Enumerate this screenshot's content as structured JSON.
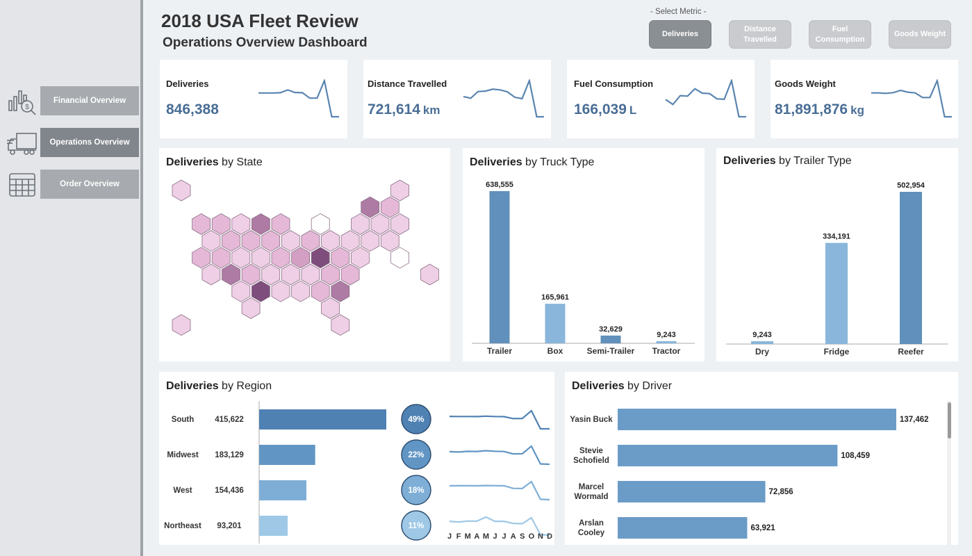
{
  "sidebar": {
    "items": [
      {
        "label": "Financial Overview",
        "icon": "financial-chart-icon",
        "active": false
      },
      {
        "label": "Operations Overview",
        "icon": "truck-icon",
        "active": true
      },
      {
        "label": "Order Overview",
        "icon": "calendar-grid-icon",
        "active": false
      }
    ]
  },
  "header": {
    "title": "2018 USA Fleet Review",
    "subtitle": "Operations Overview Dashboard",
    "metric_label": "- Select Metric -",
    "metrics": [
      {
        "label": "Deliveries",
        "active": true
      },
      {
        "label": "Distance Travelled",
        "active": false
      },
      {
        "label": "Fuel Consumption",
        "active": false
      },
      {
        "label": "Goods Weight",
        "active": false
      }
    ]
  },
  "kpis": [
    {
      "label": "Deliveries",
      "value": "846,388",
      "unit": "",
      "trend": [
        10.2,
        10.2,
        10.2,
        10.3,
        11.5,
        10.4,
        10.3,
        8.0,
        8.0,
        15.5,
        0.0,
        0.0
      ]
    },
    {
      "label": "Distance Travelled",
      "value": "721,614",
      "unit": "km",
      "trend": [
        8.5,
        7.8,
        10.6,
        10.8,
        11.6,
        11.3,
        10.5,
        8.2,
        7.6,
        15.2,
        0.0,
        0.0
      ]
    },
    {
      "label": "Fuel Consumption",
      "value": "166,039",
      "unit": "L",
      "trend": [
        7.0,
        5.0,
        8.6,
        8.4,
        11.4,
        9.6,
        9.4,
        7.3,
        7.1,
        14.7,
        0.0,
        0.0
      ]
    },
    {
      "label": "Goods Weight",
      "value": "81,891,876",
      "unit": "kg",
      "trend": [
        10.3,
        10.3,
        10.1,
        10.4,
        11.4,
        10.6,
        10.3,
        8.3,
        8.3,
        15.6,
        0.0,
        0.0
      ]
    }
  ],
  "panels": {
    "state_title_bold": "Deliveries",
    "state_title_rest": " by State",
    "truck_title_bold": "Deliveries",
    "truck_title_rest": " by Truck Type",
    "trailer_title_bold": "Deliveries",
    "trailer_title_rest": " by Trailer Type",
    "region_title_bold": "Deliveries",
    "region_title_rest": " by Region",
    "driver_title_bold": "Deliveries",
    "driver_title_rest": " by Driver"
  },
  "hexmap": {
    "rows": [
      {
        "offset": false,
        "cells": [
          [
            0,
            1
          ],
          [
            11,
            1
          ]
        ]
      },
      {
        "offset": true,
        "cells": [
          [
            9,
            4
          ],
          [
            10,
            2
          ]
        ]
      },
      {
        "offset": false,
        "cells": [
          [
            1,
            2
          ],
          [
            2,
            2
          ],
          [
            3,
            1
          ],
          [
            4,
            4
          ],
          [
            5,
            2
          ],
          [
            7,
            0
          ],
          [
            9,
            1
          ],
          [
            10,
            1
          ],
          [
            11,
            1
          ]
        ]
      },
      {
        "offset": true,
        "cells": [
          [
            1,
            1
          ],
          [
            2,
            2
          ],
          [
            3,
            2
          ],
          [
            4,
            2
          ],
          [
            5,
            1
          ],
          [
            6,
            2
          ],
          [
            7,
            1
          ],
          [
            8,
            1
          ],
          [
            9,
            1
          ],
          [
            10,
            1
          ]
        ]
      },
      {
        "offset": false,
        "cells": [
          [
            1,
            2
          ],
          [
            2,
            2
          ],
          [
            3,
            1
          ],
          [
            4,
            1
          ],
          [
            5,
            2
          ],
          [
            6,
            3
          ],
          [
            7,
            5
          ],
          [
            8,
            2
          ],
          [
            9,
            1
          ],
          [
            11,
            0
          ]
        ]
      },
      {
        "offset": true,
        "cells": [
          [
            1,
            1
          ],
          [
            2,
            4
          ],
          [
            3,
            2
          ],
          [
            4,
            1
          ],
          [
            5,
            1
          ],
          [
            6,
            1
          ],
          [
            7,
            2
          ],
          [
            8,
            2
          ],
          [
            12,
            1
          ]
        ]
      },
      {
        "offset": false,
        "cells": [
          [
            3,
            1
          ],
          [
            4,
            5
          ],
          [
            5,
            1
          ],
          [
            6,
            1
          ],
          [
            7,
            2
          ],
          [
            8,
            4
          ]
        ]
      },
      {
        "offset": true,
        "cells": [
          [
            3,
            1
          ],
          [
            7,
            1
          ]
        ]
      },
      {
        "offset": false,
        "cells": [
          [
            0,
            1
          ],
          [
            8,
            1
          ]
        ]
      }
    ],
    "colors": [
      "#ffffff",
      "#efcfe5",
      "#e4b8d6",
      "#d39fc3",
      "#ad7ba3",
      "#7e4d7c"
    ]
  },
  "chart_data": [
    {
      "type": "bar",
      "title": "Deliveries by Truck Type",
      "categories": [
        "Trailer",
        "Box",
        "Semi-Trailer",
        "Tractor"
      ],
      "values": [
        638555,
        165961,
        32629,
        9243
      ],
      "labels": [
        "638,555",
        "165,961",
        "32,629",
        "9,243"
      ],
      "colors": [
        "#6090bb",
        "#89b6da",
        "#6090bb",
        "#89b6da"
      ]
    },
    {
      "type": "bar",
      "title": "Deliveries by Trailer Type",
      "categories": [
        "Dry",
        "Fridge",
        "Reefer"
      ],
      "values": [
        9243,
        334191,
        502954
      ],
      "labels": [
        "9,243",
        "334,191",
        "502,954"
      ],
      "colors": [
        "#89b6da",
        "#89b6da",
        "#6090bb"
      ]
    },
    {
      "type": "bar",
      "title": "Deliveries by Region",
      "categories": [
        "South",
        "Midwest",
        "West",
        "Northeast"
      ],
      "values": [
        415622,
        183129,
        154436,
        93201
      ],
      "labels": [
        "415,622",
        "183,129",
        "154,436",
        "93,201"
      ],
      "shares": [
        "49%",
        "22%",
        "18%",
        "11%"
      ],
      "colors": [
        "#4f81b3",
        "#6195c4",
        "#7eaed6",
        "#9fc8e6"
      ],
      "months": [
        "J",
        "F",
        "M",
        "A",
        "M",
        "J",
        "J",
        "A",
        "S",
        "O",
        "N",
        "D"
      ],
      "trends": [
        [
          46000,
          45500,
          45600,
          45400,
          46800,
          45600,
          45000,
          38000,
          38500,
          67000,
          0,
          0
        ],
        [
          22000,
          21500,
          22500,
          22300,
          23500,
          22600,
          22200,
          18500,
          18800,
          30500,
          3000,
          2500
        ],
        [
          18500,
          18600,
          18600,
          18500,
          18900,
          18700,
          18500,
          15500,
          15300,
          23500,
          2500,
          2000
        ],
        [
          11000,
          10500,
          11200,
          11100,
          14000,
          11000,
          11000,
          9500,
          9300,
          13500,
          1500,
          1200
        ]
      ]
    },
    {
      "type": "bar",
      "title": "Deliveries by Driver",
      "categories": [
        "Yasin Buck",
        "Stevie Schofield",
        "Marcel Wormald",
        "Arslan Cooley"
      ],
      "values": [
        137462,
        108459,
        72856,
        63921
      ],
      "labels": [
        "137,462",
        "108,459",
        "72,856",
        "63,921"
      ],
      "colors": [
        "#6b9cc7",
        "#6b9cc7",
        "#6b9cc7",
        "#6b9cc7"
      ]
    }
  ]
}
